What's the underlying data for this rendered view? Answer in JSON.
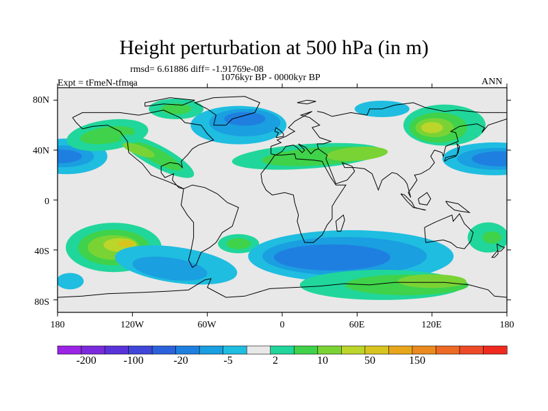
{
  "title": "Height perturbation at 500 hPa (in m)",
  "stats": "rmsd= 6.61886 diff= -1.91769e-08",
  "period": "1076kyr BP - 0000kyr BP",
  "experiment": "Expt = tFmeN-tfmea",
  "season": "ANN",
  "map": {
    "lon_range": [
      -180,
      180
    ],
    "lat_range": [
      -90,
      90
    ],
    "x_ticks": [
      "180",
      "120W",
      "60W",
      "0",
      "60E",
      "120E",
      "180"
    ],
    "y_ticks": [
      "80N",
      "40N",
      "0",
      "40S",
      "80S"
    ],
    "colors": {
      "background": "#e8e8e8",
      "coast": "#000000"
    }
  },
  "colorbar": {
    "levels": [
      "-200",
      "-100",
      "-20",
      "-5",
      "2",
      "10",
      "50",
      "150"
    ],
    "colors": [
      "#9b24e5",
      "#7a2adc",
      "#5a32d9",
      "#3f46d8",
      "#2b62dc",
      "#1f7fe0",
      "#1a9fe0",
      "#1fbde0",
      "#e8e8e8",
      "#21d69b",
      "#3fd24a",
      "#7ad335",
      "#bcd52a",
      "#d8c41f",
      "#e8a61c",
      "#ea8a1f",
      "#ec6a24",
      "#ee4a28",
      "#f02a20"
    ]
  },
  "field_colors": {
    "neg_light": "#1fbde0",
    "neg_mid": "#1a9fe0",
    "neg_strong": "#1f7fe0",
    "neg_deep": "#2b62dc",
    "pos_light": "#21d69b",
    "pos_mid": "#3fd24a",
    "pos_strong": "#7ad335",
    "pos_deep": "#bcd52a",
    "pos_peak": "#d8c41f"
  }
}
